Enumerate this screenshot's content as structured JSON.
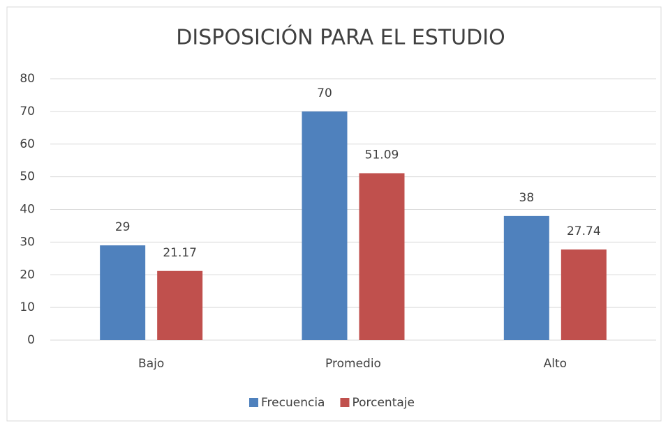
{
  "chart_data": {
    "type": "bar",
    "title": "DISPOSICIÓN PARA EL ESTUDIO",
    "categories": [
      "Bajo",
      "Promedio",
      "Alto"
    ],
    "series": [
      {
        "name": "Frecuencia",
        "color": "#4f81bd",
        "values": [
          29,
          70,
          38
        ]
      },
      {
        "name": "Porcentaje",
        "color": "#c0504d",
        "values": [
          21.17,
          51.09,
          27.74
        ]
      }
    ],
    "ylim": [
      0,
      80
    ],
    "yticks": [
      0,
      10,
      20,
      30,
      40,
      50,
      60,
      70,
      80
    ],
    "grid": true,
    "legend": "bottom"
  }
}
